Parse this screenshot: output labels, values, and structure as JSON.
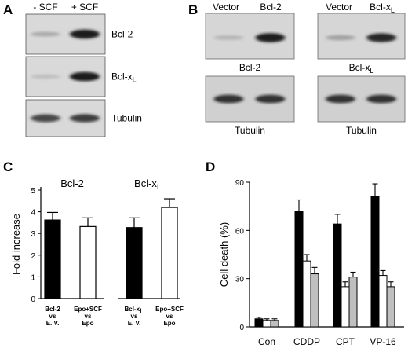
{
  "panel_a": {
    "label": "A",
    "lanes": [
      "- SCF",
      "+ SCF"
    ],
    "blots": [
      {
        "label": "Bcl-2",
        "levels": [
          0.25,
          0.95
        ]
      },
      {
        "label": "Bcl-x",
        "sub": "L",
        "levels": [
          0.15,
          0.95
        ]
      },
      {
        "label": "Tubulin",
        "levels": [
          0.75,
          0.8
        ]
      }
    ]
  },
  "panel_b": {
    "label": "B",
    "groups": [
      {
        "lanes": [
          "Vector",
          "Bcl-2"
        ],
        "top_label": "Bcl-2",
        "top_sub": "",
        "top_levels": [
          0.2,
          0.95
        ],
        "bottom_label": "Tubulin",
        "bottom_levels": [
          0.85,
          0.85
        ]
      },
      {
        "lanes": [
          "Vector",
          "Bcl-x"
        ],
        "lane_sub": "L",
        "top_label": "Bcl-x",
        "top_sub": "L",
        "top_levels": [
          0.3,
          0.9
        ],
        "bottom_label": "Tubulin",
        "bottom_levels": [
          0.85,
          0.85
        ]
      }
    ]
  },
  "panel_c": {
    "label": "C"
  },
  "panel_d": {
    "label": "D"
  },
  "chart_data": [
    {
      "type": "bar",
      "panel": "C",
      "group_titles": [
        {
          "text": "Bcl-2",
          "sub": ""
        },
        {
          "text": "Bcl-x",
          "sub": "L"
        }
      ],
      "ylabel": "Fold increase",
      "ylim": [
        0,
        5
      ],
      "yticks": [
        0,
        1,
        2,
        3,
        4,
        5
      ],
      "bars": [
        {
          "lines": [
            "Bcl-2",
            "vs",
            "E. V."
          ],
          "value": 3.62,
          "error": 0.35,
          "color": "#000000"
        },
        {
          "lines": [
            "Epo+SCF",
            "vs",
            "Epo"
          ],
          "value": 3.32,
          "error": 0.4,
          "color": "#ffffff"
        },
        {
          "lines": [
            "Bcl-x",
            "vs",
            "E. V."
          ],
          "sub_first": "L",
          "value": 3.27,
          "error": 0.45,
          "color": "#000000"
        },
        {
          "lines": [
            "Epo+SCF",
            "vs",
            "Epo"
          ],
          "value": 4.2,
          "error": 0.4,
          "color": "#ffffff"
        }
      ]
    },
    {
      "type": "bar",
      "panel": "D",
      "ylabel": "Cell death (%)",
      "ylim": [
        0,
        90
      ],
      "yticks": [
        0,
        30,
        60,
        90
      ],
      "categories": [
        "Con",
        "CDDP",
        "CPT",
        "VP-16"
      ],
      "series_colors": [
        "#000000",
        "#ffffff",
        "#bfbfbf"
      ],
      "values": [
        [
          5,
          4,
          4
        ],
        [
          72,
          41,
          33
        ],
        [
          64,
          25,
          31
        ],
        [
          81,
          32,
          25
        ]
      ],
      "errors": [
        [
          1,
          1,
          1
        ],
        [
          7,
          4,
          4
        ],
        [
          6,
          3,
          3
        ],
        [
          8,
          3,
          3
        ]
      ]
    }
  ]
}
